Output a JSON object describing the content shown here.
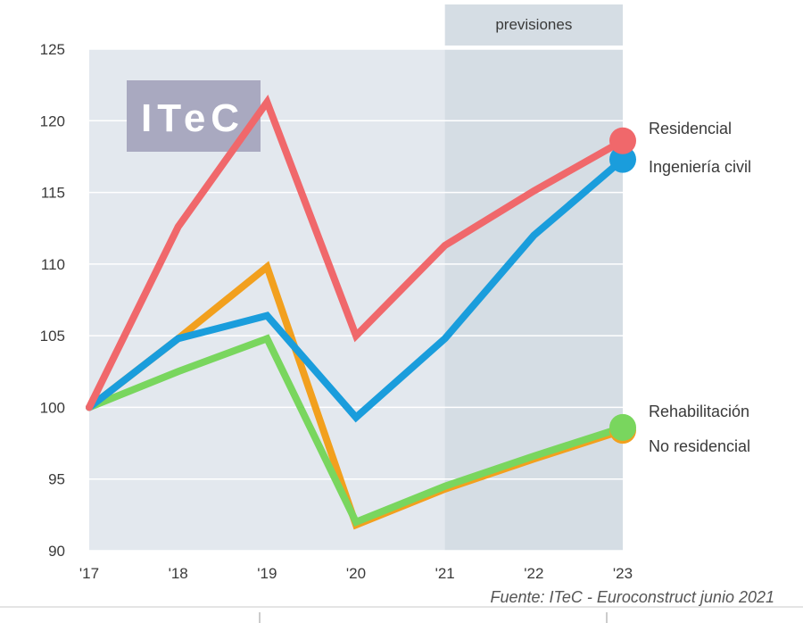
{
  "chart_data": {
    "type": "line",
    "x": [
      "'17",
      "'18",
      "'19",
      "'20",
      "'21",
      "'22",
      "'23"
    ],
    "ylim": [
      90,
      125
    ],
    "yticks": [
      90,
      95,
      100,
      105,
      110,
      115,
      120,
      125
    ],
    "forecast_band": {
      "label": "previsiones",
      "from": "'21",
      "to": "'23",
      "color": "#d5dde4"
    },
    "plot_background": "#e3e8ee",
    "grid": true,
    "logo": "ITeC",
    "source": "Fuente: ITeC - Euroconstruct junio 2021",
    "series": [
      {
        "name": "No residencial",
        "color": "#f2a01e",
        "values": [
          100,
          104.8,
          109.8,
          91.8,
          94.3,
          96.4,
          98.4
        ]
      },
      {
        "name": "Rehabilitación",
        "color": "#79d65e",
        "values": [
          100,
          102.5,
          104.8,
          92.0,
          94.5,
          96.6,
          98.6
        ]
      },
      {
        "name": "Ingeniería civil",
        "color": "#1a9ddc",
        "values": [
          100,
          104.8,
          106.4,
          99.3,
          104.8,
          112.0,
          117.3
        ]
      },
      {
        "name": "Residencial",
        "color": "#f0686b",
        "values": [
          100,
          112.6,
          121.3,
          105.0,
          111.3,
          115.1,
          118.6
        ]
      }
    ],
    "legend": [
      "Residencial",
      "Ingeniería civil",
      "Rehabilitación",
      "No residencial"
    ]
  }
}
